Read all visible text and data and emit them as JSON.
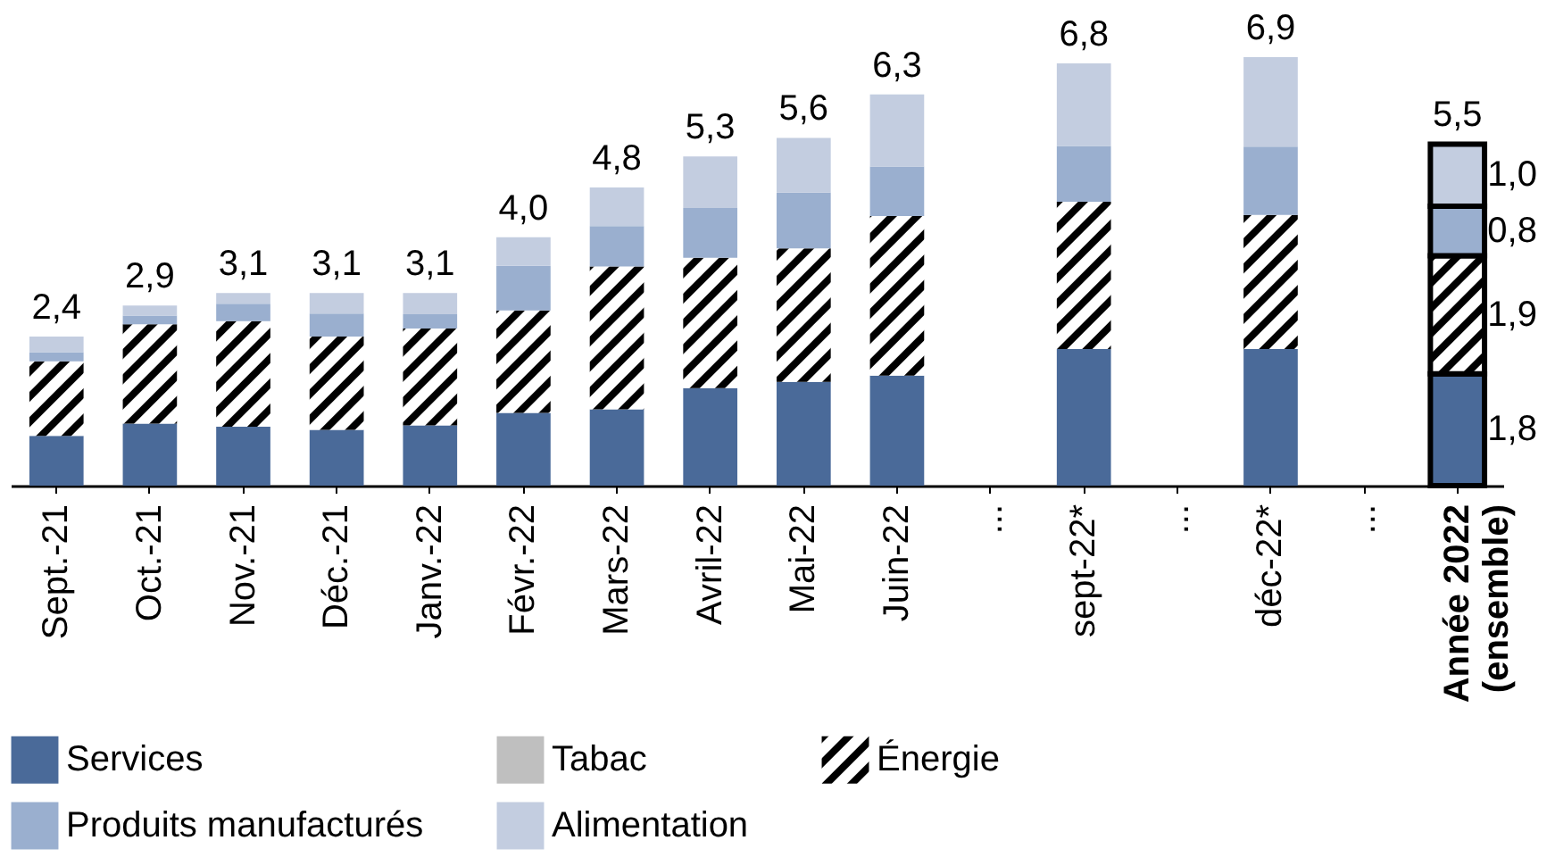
{
  "chart_data": {
    "type": "bar",
    "stacked": true,
    "legend": "bottom",
    "categories": [
      "Sept.-21",
      "Oct.-21",
      "Nov.-21",
      "Déc.-21",
      "Janv.-22",
      "Févr.-22",
      "Mars-22",
      "Avril-22",
      "Mai-22",
      "Juin-22",
      "...",
      "sept-22*",
      "...",
      "déc-22*",
      "...",
      "Année 2022\n(ensemble)"
    ],
    "series": [
      {
        "name": "Services",
        "color": "#4a6a99",
        "values": [
          0.8,
          1.0,
          0.95,
          0.9,
          0.97,
          1.17,
          1.23,
          1.57,
          1.67,
          1.77,
          null,
          2.2,
          null,
          2.2,
          null,
          1.8
        ],
        "value_labels": [
          null,
          null,
          null,
          null,
          null,
          null,
          null,
          null,
          null,
          null,
          null,
          null,
          null,
          null,
          null,
          "1,8"
        ]
      },
      {
        "name": "Tabac",
        "color": "#bfbfbf",
        "values": [
          null,
          null,
          null,
          null,
          null,
          null,
          null,
          null,
          null,
          null,
          null,
          null,
          null,
          null,
          null,
          null
        ]
      },
      {
        "name": "Énergie",
        "color": "#000000",
        "values": [
          1.2,
          1.6,
          1.7,
          1.5,
          1.56,
          1.65,
          2.3,
          2.1,
          2.15,
          2.57,
          null,
          2.37,
          null,
          2.16,
          null,
          1.9
        ],
        "value_labels": [
          null,
          null,
          null,
          null,
          null,
          null,
          null,
          null,
          null,
          null,
          null,
          null,
          null,
          null,
          null,
          "1,9"
        ]
      },
      {
        "name": "Produits manufacturés",
        "color": "#9aafcf",
        "values": [
          0.15,
          0.14,
          0.28,
          0.37,
          0.23,
          0.72,
          0.65,
          0.8,
          0.9,
          0.8,
          null,
          0.9,
          null,
          1.1,
          null,
          0.8
        ],
        "value_labels": [
          null,
          null,
          null,
          null,
          null,
          null,
          null,
          null,
          null,
          null,
          null,
          null,
          null,
          null,
          null,
          "0,8"
        ]
      },
      {
        "name": "Alimentation",
        "color": "#c3cde0",
        "values": [
          0.25,
          0.16,
          0.17,
          0.33,
          0.34,
          0.46,
          0.62,
          0.83,
          0.88,
          1.16,
          null,
          1.33,
          null,
          1.44,
          null,
          1.0
        ],
        "value_labels": [
          null,
          null,
          null,
          null,
          null,
          null,
          null,
          null,
          null,
          null,
          null,
          null,
          null,
          null,
          null,
          "1,0"
        ]
      }
    ],
    "totals": [
      "2,4",
      "2,9",
      "3,1",
      "3,1",
      "3,1",
      "4,0",
      "4,8",
      "5,3",
      "5,6",
      "6,3",
      null,
      "6,8",
      null,
      "6,9",
      null,
      "5,5"
    ]
  }
}
